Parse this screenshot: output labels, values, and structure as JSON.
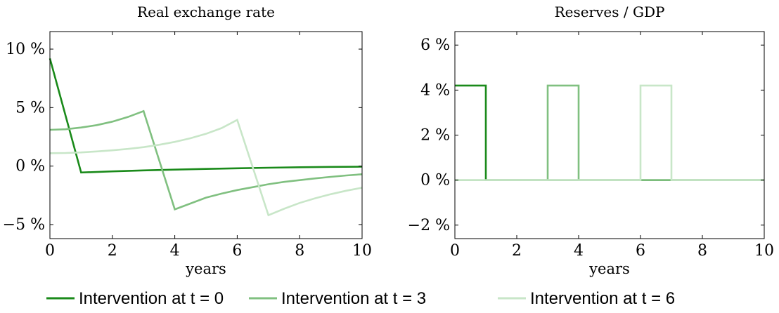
{
  "chart_data": [
    {
      "type": "line",
      "title": "Real exchange rate",
      "xlabel": "years",
      "ylabel": "",
      "xlim": [
        0,
        10
      ],
      "ylim": [
        -6.2,
        11.5
      ],
      "xticks": [
        0,
        2,
        4,
        6,
        8,
        10
      ],
      "xtick_labels": [
        "0",
        "2",
        "4",
        "6",
        "8",
        "10"
      ],
      "yticks": [
        -5,
        0,
        5,
        10
      ],
      "ytick_labels": [
        "−5 %",
        "0 %",
        "5 %",
        "10 %"
      ],
      "grid": false,
      "series": [
        {
          "name": "Intervention at t = 0",
          "color": "#1a8a1a",
          "points": [
            [
              0,
              9.2
            ],
            [
              1,
              -0.55
            ],
            [
              2,
              -0.45
            ],
            [
              3,
              -0.37
            ],
            [
              4,
              -0.3
            ],
            [
              5,
              -0.24
            ],
            [
              6,
              -0.19
            ],
            [
              7,
              -0.14
            ],
            [
              8,
              -0.1
            ],
            [
              9,
              -0.07
            ],
            [
              10,
              -0.05
            ]
          ]
        },
        {
          "name": "Intervention at t = 3",
          "color": "#80c080",
          "points": [
            [
              0,
              3.1
            ],
            [
              0.5,
              3.15
            ],
            [
              1,
              3.3
            ],
            [
              1.5,
              3.5
            ],
            [
              2,
              3.8
            ],
            [
              2.5,
              4.2
            ],
            [
              3,
              4.7
            ],
            [
              4,
              -3.7
            ],
            [
              4.5,
              -3.2
            ],
            [
              5,
              -2.7
            ],
            [
              5.5,
              -2.35
            ],
            [
              6,
              -2.05
            ],
            [
              6.5,
              -1.8
            ],
            [
              7,
              -1.55
            ],
            [
              7.5,
              -1.35
            ],
            [
              8,
              -1.2
            ],
            [
              8.5,
              -1.05
            ],
            [
              9,
              -0.92
            ],
            [
              9.5,
              -0.8
            ],
            [
              10,
              -0.7
            ]
          ]
        },
        {
          "name": "Intervention at t = 6",
          "color": "#c8e6c8",
          "points": [
            [
              0,
              1.1
            ],
            [
              0.5,
              1.12
            ],
            [
              1,
              1.17
            ],
            [
              1.5,
              1.25
            ],
            [
              2,
              1.35
            ],
            [
              2.5,
              1.47
            ],
            [
              3,
              1.62
            ],
            [
              3.5,
              1.82
            ],
            [
              4,
              2.07
            ],
            [
              4.5,
              2.38
            ],
            [
              5,
              2.76
            ],
            [
              5.5,
              3.25
            ],
            [
              6,
              3.95
            ],
            [
              7,
              -4.2
            ],
            [
              7.5,
              -3.65
            ],
            [
              8,
              -3.15
            ],
            [
              8.5,
              -2.75
            ],
            [
              9,
              -2.4
            ],
            [
              9.5,
              -2.1
            ],
            [
              10,
              -1.85
            ]
          ]
        }
      ]
    },
    {
      "type": "line",
      "title": "Reserves / GDP",
      "xlabel": "years",
      "ylabel": "",
      "xlim": [
        0,
        10
      ],
      "ylim": [
        -2.6,
        6.6
      ],
      "xticks": [
        0,
        2,
        4,
        6,
        8,
        10
      ],
      "xtick_labels": [
        "0",
        "2",
        "4",
        "6",
        "8",
        "10"
      ],
      "yticks": [
        -2,
        0,
        2,
        4,
        6
      ],
      "ytick_labels": [
        "−2 %",
        "0 %",
        "2 %",
        "4 %",
        "6 %"
      ],
      "grid": false,
      "series": [
        {
          "name": "Intervention at t = 0",
          "color": "#1a8a1a",
          "points": [
            [
              0,
              4.2
            ],
            [
              1,
              4.2
            ],
            [
              1,
              0
            ],
            [
              10,
              0
            ]
          ]
        },
        {
          "name": "Intervention at t = 3",
          "color": "#80c080",
          "points": [
            [
              0,
              0
            ],
            [
              3,
              0
            ],
            [
              3,
              4.2
            ],
            [
              4,
              4.2
            ],
            [
              4,
              0
            ],
            [
              10,
              0
            ]
          ]
        },
        {
          "name": "Intervention at t = 6",
          "color": "#c8e6c8",
          "points": [
            [
              0,
              0
            ],
            [
              6,
              0
            ],
            [
              6,
              4.2
            ],
            [
              7,
              4.2
            ],
            [
              7,
              0
            ],
            [
              10,
              0
            ]
          ]
        }
      ]
    }
  ],
  "legend": {
    "placement": "bottom",
    "items": [
      {
        "label": "Intervention at t = 0",
        "color": "#1a8a1a"
      },
      {
        "label": "Intervention at t = 3",
        "color": "#80c080"
      },
      {
        "label": "Intervention at t = 6",
        "color": "#c8e6c8"
      }
    ]
  }
}
